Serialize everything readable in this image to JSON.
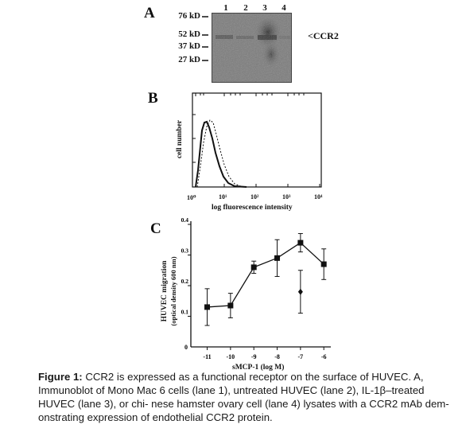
{
  "panels": {
    "A": {
      "letter": "A",
      "mw_labels": [
        "76 kD",
        "52 kD",
        "37 kD",
        "27 kD"
      ],
      "lane_labels": [
        "1",
        "2",
        "3",
        "4"
      ],
      "band_label": "CCR2"
    },
    "B": {
      "letter": "B",
      "y_label": "cell number",
      "x_label": "log fluorescence intensity",
      "x_ticks": [
        "10⁰",
        "10¹",
        "10²",
        "10³",
        "10⁴"
      ]
    },
    "C": {
      "letter": "C",
      "y_label": "HUVEC migration",
      "y_label_2": "(optical density 600 nm)",
      "x_label": "sMCP-1 (log M)"
    }
  },
  "chart_data": {
    "type": "line",
    "title": "",
    "xlabel": "sMCP-1 (log M)",
    "ylabel": "HUVEC migration (optical density 600 nm)",
    "xlim": [
      -11.7,
      -5.7
    ],
    "ylim": [
      0.0,
      0.4
    ],
    "x_ticks": [
      "-11",
      "-10",
      "-9",
      "-8",
      "-7",
      "-6"
    ],
    "y_ticks": [
      "0.1",
      "0.2",
      "0.3",
      "0.4"
    ],
    "x_tick_values": [
      -11,
      -10,
      -9,
      -8,
      -7,
      -6
    ],
    "y_tick_values": [
      0.1,
      0.2,
      0.3,
      0.4
    ],
    "series": [
      {
        "marker": "square",
        "x": [
          -11,
          -10,
          -9,
          -8,
          -7,
          -6
        ],
        "y": [
          0.13,
          0.135,
          0.26,
          0.29,
          0.34,
          0.27
        ],
        "err": [
          0.06,
          0.04,
          0.02,
          0.06,
          0.03,
          0.05
        ]
      },
      {
        "marker": "diamond",
        "x": [
          -7
        ],
        "y": [
          0.18
        ],
        "err": [
          0.07
        ]
      }
    ]
  },
  "caption": {
    "label": "Figure 1:",
    "text": " CCR2 is expressed as a functional receptor on the surface of HUVEC. A, Immunoblot of Mono Mac 6 cells (lane 1), untreated HUVEC (lane 2), IL-1β–treated HUVEC (lane 3), or chi- nese hamster ovary cell (lane 4) lysates with a CCR2 mAb dem- onstrating expression of endothelial CCR2 protein."
  }
}
